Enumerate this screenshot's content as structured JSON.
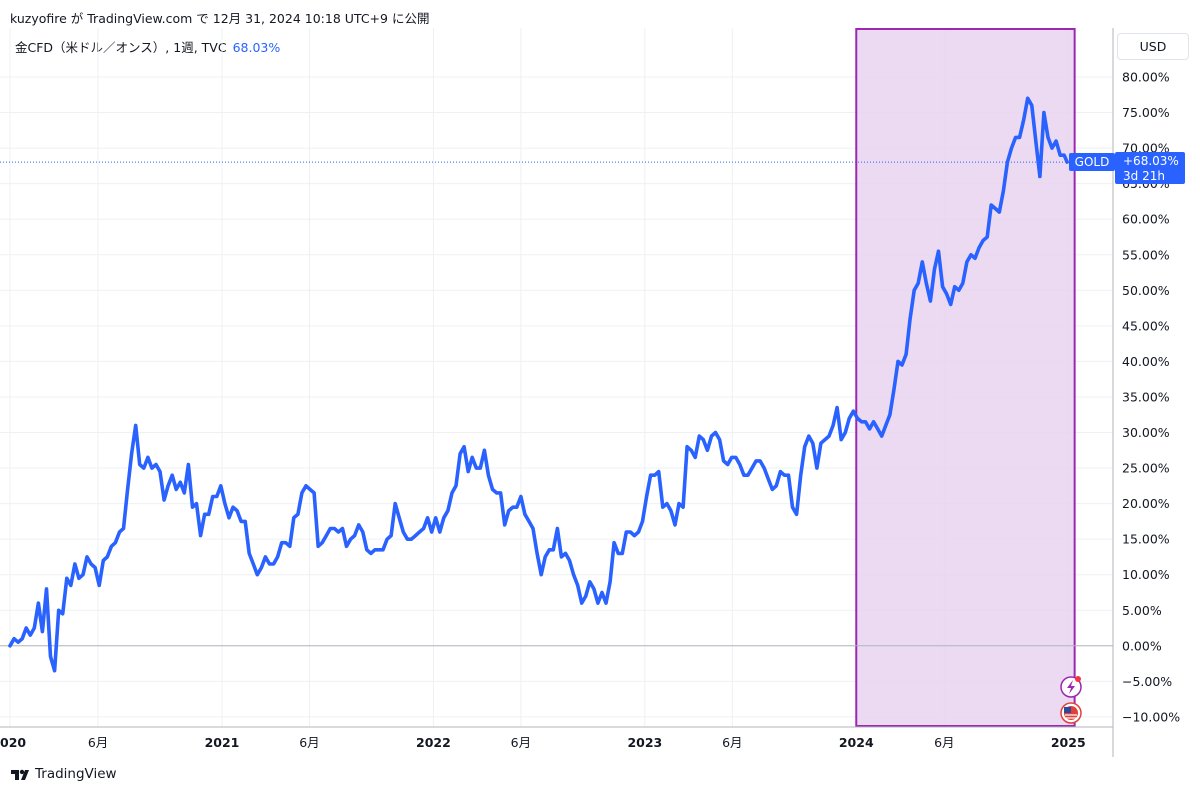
{
  "header": {
    "publish_line": "kuzyofire が TradingView.com で 12月 31, 2024 10:18 UTC+9 に公開"
  },
  "legend": {
    "symbol": "金CFD（米ドル／オンス）, 1週, TVC",
    "value": "68.03%"
  },
  "currency_button": "USD",
  "price_tag": {
    "symbol": "GOLD",
    "value": "+68.03%",
    "countdown": "3d 21h"
  },
  "brand": "TradingView",
  "colors": {
    "line": "#2962ff",
    "highlight_fill": "#e7d3ef",
    "highlight_border": "#9c27b0",
    "grid": "#eef0f4",
    "zero_line": "#b2b5be"
  },
  "chart_data": {
    "type": "line",
    "ylim": [
      -10,
      84
    ],
    "y_ticks": [
      "80.00%",
      "75.00%",
      "70.00%",
      "65.00%",
      "60.00%",
      "55.00%",
      "50.00%",
      "45.00%",
      "40.00%",
      "35.00%",
      "30.00%",
      "25.00%",
      "20.00%",
      "15.00%",
      "10.00%",
      "5.00%",
      "0.00%",
      "−5.00%",
      "−10.00%"
    ],
    "y_tick_values": [
      80,
      75,
      70,
      65,
      60,
      55,
      50,
      45,
      40,
      35,
      30,
      25,
      20,
      15,
      10,
      5,
      0,
      -5,
      -10
    ],
    "x_ticks": [
      {
        "label": "020",
        "date": "2020-01-01",
        "bold": true
      },
      {
        "label": "6月",
        "date": "2020-06-01",
        "bold": false
      },
      {
        "label": "2021",
        "date": "2021-01-01",
        "bold": true
      },
      {
        "label": "6月",
        "date": "2021-06-01",
        "bold": false
      },
      {
        "label": "2022",
        "date": "2022-01-01",
        "bold": true
      },
      {
        "label": "6月",
        "date": "2022-06-01",
        "bold": false
      },
      {
        "label": "2023",
        "date": "2023-01-01",
        "bold": true
      },
      {
        "label": "6月",
        "date": "2023-06-01",
        "bold": false
      },
      {
        "label": "2024",
        "date": "2024-01-01",
        "bold": true
      },
      {
        "label": "6月",
        "date": "2024-06-01",
        "bold": false
      },
      {
        "label": "2025",
        "date": "2025-01-01",
        "bold": true
      }
    ],
    "highlight_range": [
      "2024-01-01",
      "2025-01-12"
    ],
    "last_value": 68.03,
    "series": [
      {
        "values": [
          [
            "2020-01-01",
            0
          ],
          [
            "2020-01-08",
            1
          ],
          [
            "2020-01-15",
            0.5
          ],
          [
            "2020-01-22",
            1
          ],
          [
            "2020-01-29",
            2.5
          ],
          [
            "2020-02-05",
            1.5
          ],
          [
            "2020-02-12",
            2.5
          ],
          [
            "2020-02-19",
            6
          ],
          [
            "2020-02-26",
            2
          ],
          [
            "2020-03-04",
            8
          ],
          [
            "2020-03-11",
            -1.5
          ],
          [
            "2020-03-18",
            -3.5
          ],
          [
            "2020-03-25",
            5
          ],
          [
            "2020-04-01",
            4.5
          ],
          [
            "2020-04-08",
            9.5
          ],
          [
            "2020-04-15",
            8.5
          ],
          [
            "2020-04-22",
            11.5
          ],
          [
            "2020-04-29",
            9.5
          ],
          [
            "2020-05-06",
            10
          ],
          [
            "2020-05-13",
            12.5
          ],
          [
            "2020-05-20",
            11.5
          ],
          [
            "2020-05-27",
            11
          ],
          [
            "2020-06-03",
            8.5
          ],
          [
            "2020-06-10",
            12
          ],
          [
            "2020-06-17",
            12.5
          ],
          [
            "2020-06-24",
            14
          ],
          [
            "2020-07-01",
            14.5
          ],
          [
            "2020-07-08",
            16
          ],
          [
            "2020-07-15",
            16.5
          ],
          [
            "2020-07-22",
            22
          ],
          [
            "2020-07-29",
            27
          ],
          [
            "2020-08-05",
            31
          ],
          [
            "2020-08-12",
            25.5
          ],
          [
            "2020-08-19",
            25
          ],
          [
            "2020-08-26",
            26.5
          ],
          [
            "2020-09-02",
            25
          ],
          [
            "2020-09-09",
            25.5
          ],
          [
            "2020-09-16",
            24.5
          ],
          [
            "2020-09-23",
            20.5
          ],
          [
            "2020-09-30",
            22.5
          ],
          [
            "2020-10-07",
            24
          ],
          [
            "2020-10-14",
            22
          ],
          [
            "2020-10-21",
            23
          ],
          [
            "2020-10-28",
            21.5
          ],
          [
            "2020-11-04",
            25.5
          ],
          [
            "2020-11-11",
            19.5
          ],
          [
            "2020-11-18",
            20
          ],
          [
            "2020-11-25",
            15.5
          ],
          [
            "2020-12-02",
            18.5
          ],
          [
            "2020-12-09",
            18.5
          ],
          [
            "2020-12-16",
            21
          ],
          [
            "2020-12-23",
            21
          ],
          [
            "2020-12-30",
            22.5
          ],
          [
            "2021-01-06",
            20
          ],
          [
            "2021-01-13",
            18
          ],
          [
            "2021-01-20",
            19.5
          ],
          [
            "2021-01-27",
            19
          ],
          [
            "2021-02-03",
            17.5
          ],
          [
            "2021-02-10",
            17.5
          ],
          [
            "2021-02-17",
            13
          ],
          [
            "2021-02-24",
            11.5
          ],
          [
            "2021-03-03",
            10
          ],
          [
            "2021-03-10",
            11
          ],
          [
            "2021-03-17",
            12.5
          ],
          [
            "2021-03-24",
            11.5
          ],
          [
            "2021-03-31",
            11.5
          ],
          [
            "2021-04-07",
            12.5
          ],
          [
            "2021-04-14",
            14.5
          ],
          [
            "2021-04-21",
            14.5
          ],
          [
            "2021-04-28",
            14
          ],
          [
            "2021-05-05",
            18
          ],
          [
            "2021-05-12",
            18.5
          ],
          [
            "2021-05-19",
            21.5
          ],
          [
            "2021-05-26",
            22.5
          ],
          [
            "2021-06-02",
            22
          ],
          [
            "2021-06-09",
            21.5
          ],
          [
            "2021-06-16",
            14
          ],
          [
            "2021-06-23",
            14.5
          ],
          [
            "2021-06-30",
            15.5
          ],
          [
            "2021-07-07",
            16.5
          ],
          [
            "2021-07-14",
            16.5
          ],
          [
            "2021-07-21",
            16
          ],
          [
            "2021-07-28",
            16.5
          ],
          [
            "2021-08-04",
            14
          ],
          [
            "2021-08-11",
            15
          ],
          [
            "2021-08-18",
            15.5
          ],
          [
            "2021-08-25",
            17
          ],
          [
            "2021-09-01",
            16
          ],
          [
            "2021-09-08",
            13.5
          ],
          [
            "2021-09-15",
            13
          ],
          [
            "2021-09-22",
            13.5
          ],
          [
            "2021-09-29",
            13.5
          ],
          [
            "2021-10-06",
            13.5
          ],
          [
            "2021-10-13",
            15
          ],
          [
            "2021-10-20",
            15.5
          ],
          [
            "2021-10-27",
            20
          ],
          [
            "2021-11-03",
            18
          ],
          [
            "2021-11-10",
            16
          ],
          [
            "2021-11-17",
            15
          ],
          [
            "2021-11-24",
            15
          ],
          [
            "2021-12-01",
            15.5
          ],
          [
            "2021-12-08",
            16
          ],
          [
            "2021-12-15",
            16.5
          ],
          [
            "2021-12-22",
            18
          ],
          [
            "2021-12-29",
            16
          ],
          [
            "2022-01-05",
            18
          ],
          [
            "2022-01-12",
            16
          ],
          [
            "2022-01-19",
            18
          ],
          [
            "2022-01-26",
            19
          ],
          [
            "2022-02-02",
            21.5
          ],
          [
            "2022-02-09",
            22.5
          ],
          [
            "2022-02-16",
            27
          ],
          [
            "2022-02-23",
            28
          ],
          [
            "2022-03-02",
            24.5
          ],
          [
            "2022-03-09",
            26.5
          ],
          [
            "2022-03-16",
            25
          ],
          [
            "2022-03-23",
            25
          ],
          [
            "2022-03-30",
            27.5
          ],
          [
            "2022-04-06",
            24
          ],
          [
            "2022-04-13",
            22
          ],
          [
            "2022-04-20",
            21.5
          ],
          [
            "2022-04-27",
            21.5
          ],
          [
            "2022-05-04",
            17
          ],
          [
            "2022-05-11",
            19
          ],
          [
            "2022-05-18",
            19.5
          ],
          [
            "2022-05-25",
            19.5
          ],
          [
            "2022-06-01",
            21
          ],
          [
            "2022-06-08",
            18.5
          ],
          [
            "2022-06-15",
            17.5
          ],
          [
            "2022-06-22",
            16.5
          ],
          [
            "2022-06-29",
            13
          ],
          [
            "2022-07-06",
            10
          ],
          [
            "2022-07-13",
            12.5
          ],
          [
            "2022-07-20",
            13.5
          ],
          [
            "2022-07-27",
            13.5
          ],
          [
            "2022-08-03",
            16.5
          ],
          [
            "2022-08-10",
            12.5
          ],
          [
            "2022-08-17",
            13
          ],
          [
            "2022-08-24",
            12
          ],
          [
            "2022-08-31",
            10
          ],
          [
            "2022-09-07",
            8.5
          ],
          [
            "2022-09-14",
            6
          ],
          [
            "2022-09-21",
            7
          ],
          [
            "2022-09-28",
            9
          ],
          [
            "2022-10-05",
            8
          ],
          [
            "2022-10-12",
            6
          ],
          [
            "2022-10-19",
            7.5
          ],
          [
            "2022-10-26",
            6
          ],
          [
            "2022-11-02",
            9
          ],
          [
            "2022-11-09",
            14.5
          ],
          [
            "2022-11-16",
            13
          ],
          [
            "2022-11-23",
            13
          ],
          [
            "2022-11-30",
            16
          ],
          [
            "2022-12-07",
            16
          ],
          [
            "2022-12-14",
            15.5
          ],
          [
            "2022-12-21",
            16
          ],
          [
            "2022-12-28",
            17.5
          ],
          [
            "2023-01-04",
            21
          ],
          [
            "2023-01-11",
            24
          ],
          [
            "2023-01-18",
            24
          ],
          [
            "2023-01-25",
            24.5
          ],
          [
            "2023-02-01",
            19.5
          ],
          [
            "2023-02-08",
            20
          ],
          [
            "2023-02-15",
            19
          ],
          [
            "2023-02-22",
            17
          ],
          [
            "2023-03-01",
            20
          ],
          [
            "2023-03-08",
            19.5
          ],
          [
            "2023-03-15",
            28
          ],
          [
            "2023-03-22",
            27.5
          ],
          [
            "2023-03-29",
            26.5
          ],
          [
            "2023-04-05",
            29.5
          ],
          [
            "2023-04-12",
            29
          ],
          [
            "2023-04-19",
            27.5
          ],
          [
            "2023-04-26",
            29.5
          ],
          [
            "2023-05-03",
            30
          ],
          [
            "2023-05-10",
            29
          ],
          [
            "2023-05-17",
            26
          ],
          [
            "2023-05-24",
            25.5
          ],
          [
            "2023-05-31",
            26.5
          ],
          [
            "2023-06-07",
            26.5
          ],
          [
            "2023-06-14",
            25.5
          ],
          [
            "2023-06-21",
            24
          ],
          [
            "2023-06-28",
            24
          ],
          [
            "2023-07-05",
            25
          ],
          [
            "2023-07-12",
            26
          ],
          [
            "2023-07-19",
            26
          ],
          [
            "2023-07-26",
            25
          ],
          [
            "2023-08-02",
            23.5
          ],
          [
            "2023-08-09",
            22
          ],
          [
            "2023-08-16",
            22.5
          ],
          [
            "2023-08-23",
            24.5
          ],
          [
            "2023-08-30",
            24
          ],
          [
            "2023-09-06",
            24
          ],
          [
            "2023-09-13",
            19.5
          ],
          [
            "2023-09-20",
            18.5
          ],
          [
            "2023-09-27",
            24
          ],
          [
            "2023-10-04",
            28
          ],
          [
            "2023-10-11",
            29.5
          ],
          [
            "2023-10-18",
            28.5
          ],
          [
            "2023-10-25",
            25
          ],
          [
            "2023-11-01",
            28.5
          ],
          [
            "2023-11-08",
            29
          ],
          [
            "2023-11-15",
            29.5
          ],
          [
            "2023-11-22",
            31
          ],
          [
            "2023-11-29",
            33.5
          ],
          [
            "2023-12-06",
            29
          ],
          [
            "2023-12-13",
            30
          ],
          [
            "2023-12-20",
            32
          ],
          [
            "2023-12-27",
            33
          ],
          [
            "2024-01-03",
            32
          ],
          [
            "2024-01-10",
            31.5
          ],
          [
            "2024-01-17",
            31.5
          ],
          [
            "2024-01-24",
            30.5
          ],
          [
            "2024-01-31",
            31.5
          ],
          [
            "2024-02-07",
            30.5
          ],
          [
            "2024-02-14",
            29.5
          ],
          [
            "2024-02-21",
            31
          ],
          [
            "2024-02-28",
            32.5
          ],
          [
            "2024-03-06",
            36
          ],
          [
            "2024-03-13",
            40
          ],
          [
            "2024-03-20",
            39.5
          ],
          [
            "2024-03-27",
            41
          ],
          [
            "2024-04-03",
            46
          ],
          [
            "2024-04-10",
            50
          ],
          [
            "2024-04-17",
            51
          ],
          [
            "2024-04-24",
            54
          ],
          [
            "2024-05-01",
            51
          ],
          [
            "2024-05-08",
            48.5
          ],
          [
            "2024-05-15",
            53
          ],
          [
            "2024-05-22",
            55.5
          ],
          [
            "2024-05-29",
            50.5
          ],
          [
            "2024-06-05",
            49.5
          ],
          [
            "2024-06-12",
            48
          ],
          [
            "2024-06-19",
            50.5
          ],
          [
            "2024-06-26",
            50
          ],
          [
            "2024-07-03",
            51
          ],
          [
            "2024-07-10",
            54
          ],
          [
            "2024-07-17",
            55
          ],
          [
            "2024-07-24",
            54.5
          ],
          [
            "2024-07-31",
            56
          ],
          [
            "2024-08-07",
            57
          ],
          [
            "2024-08-14",
            57.5
          ],
          [
            "2024-08-21",
            62
          ],
          [
            "2024-08-28",
            61.5
          ],
          [
            "2024-09-04",
            61
          ],
          [
            "2024-09-11",
            64
          ],
          [
            "2024-09-18",
            68
          ],
          [
            "2024-09-25",
            70
          ],
          [
            "2024-10-02",
            71.5
          ],
          [
            "2024-10-09",
            71.5
          ],
          [
            "2024-10-16",
            74
          ],
          [
            "2024-10-23",
            77
          ],
          [
            "2024-10-30",
            76
          ],
          [
            "2024-11-06",
            71
          ],
          [
            "2024-11-13",
            66
          ],
          [
            "2024-11-20",
            75
          ],
          [
            "2024-11-27",
            71.5
          ],
          [
            "2024-12-04",
            70
          ],
          [
            "2024-12-11",
            71
          ],
          [
            "2024-12-18",
            69
          ],
          [
            "2024-12-25",
            69
          ],
          [
            "2024-12-30",
            68.03
          ]
        ]
      }
    ]
  }
}
